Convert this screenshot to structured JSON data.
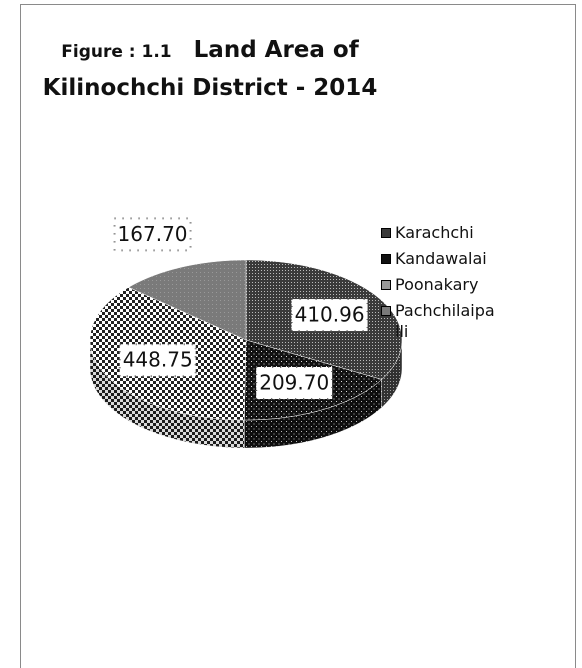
{
  "chart_data": {
    "type": "pie",
    "figure_label": "Figure : 1.1",
    "title": "Land Area of Kilinochchi District - 2014",
    "categories": [
      "Karachchi",
      "Kandawalai",
      "Poonakary",
      "Pachchilaipalli"
    ],
    "values": [
      410.96,
      209.7,
      448.75,
      167.7
    ],
    "value_labels": [
      "410.96",
      "209.70",
      "448.75",
      "167.70"
    ],
    "colors": [
      "#3a3a3a",
      "#111111",
      "#9a9a9a",
      "#7a7a7a"
    ],
    "legend": "right"
  }
}
